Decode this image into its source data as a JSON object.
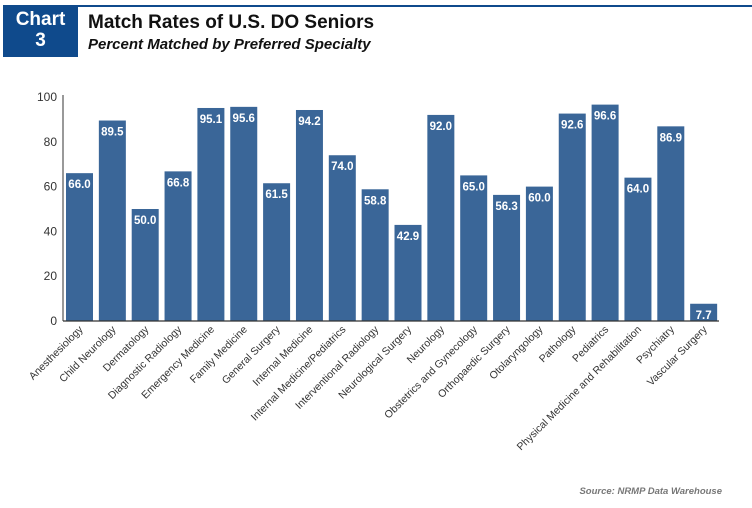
{
  "header": {
    "badge_line1": "Chart",
    "badge_line2": "3",
    "title": "Match Rates of U.S. DO Seniors",
    "subtitle": "Percent Matched by Preferred Specialty"
  },
  "source": "Source: NRMP Data Warehouse",
  "colors": {
    "bar": "#3a6698",
    "badge": "#0f4a8c",
    "bar_label": "#ffffff"
  },
  "chart_data": {
    "type": "bar",
    "title": "Match Rates of U.S. DO Seniors",
    "subtitle": "Percent Matched by Preferred Specialty",
    "xlabel": "",
    "ylabel": "",
    "ylim": [
      0,
      100
    ],
    "yticks": [
      0,
      20,
      40,
      60,
      80,
      100
    ],
    "grid": false,
    "categories": [
      "Anesthesiology",
      "Child Neurology",
      "Dermatology",
      "Diagnostic Radiology",
      "Emergency Medicine",
      "Family Medicine",
      "General Surgery",
      "Internal Medicine",
      "Internal Medicine/Pediatrics",
      "Interventional Radiology",
      "Neurological Surgery",
      "Neurology",
      "Obstetrics and Gynecology",
      "Orthopaedic Surgery",
      "Otolaryngology",
      "Pathology",
      "Pediatrics",
      "Physical Medicine and Rehabilitation",
      "Psychiatry",
      "Vascular Surgery"
    ],
    "values": [
      66.0,
      89.5,
      50.0,
      66.8,
      95.1,
      95.6,
      61.5,
      94.2,
      74.0,
      58.8,
      42.9,
      92.0,
      65.0,
      56.3,
      60.0,
      92.6,
      96.6,
      64.0,
      86.9,
      7.7
    ]
  }
}
